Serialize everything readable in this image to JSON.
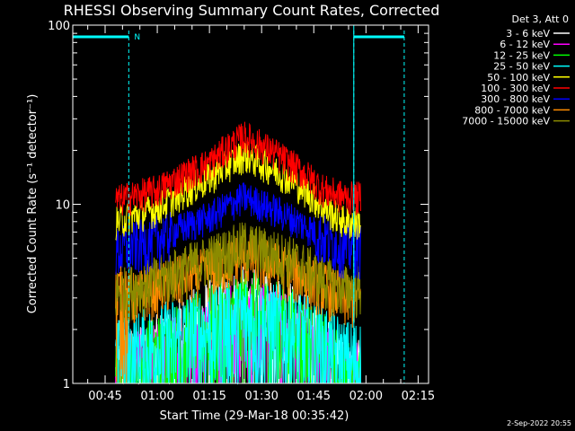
{
  "chart_data": {
    "type": "line",
    "title": "RHESSI Observing Summary Count Rates, Corrected",
    "xlabel": "Start Time (29-Mar-18 00:35:42)",
    "ylabel": "Corrected Count Rate (s⁻¹ detector⁻¹)",
    "yscale": "log",
    "ylim": [
      1,
      100
    ],
    "y_ticks": [
      {
        "value": 1,
        "label": "1"
      },
      {
        "value": 10,
        "label": "10"
      },
      {
        "value": 100,
        "label": "100"
      }
    ],
    "xlim": [
      "00:35:42",
      "02:18:00"
    ],
    "x_ticks": [
      "00:45",
      "01:00",
      "01:15",
      "01:30",
      "01:45",
      "02:00",
      "02:15"
    ],
    "x_tick_minutes": [
      45,
      60,
      75,
      90,
      105,
      120,
      135
    ],
    "legend": {
      "header": "Det 3, Att 0",
      "placement": "top-right outside"
    },
    "series": [
      {
        "name": "3 - 6 keV",
        "color": "#ffffff",
        "values": [
          1.0,
          1.4,
          2.2,
          2.6,
          2.2,
          1.4,
          1.0
        ]
      },
      {
        "name": "6 - 12 keV",
        "color": "#ff00ff",
        "values": [
          1.0,
          1.3,
          1.8,
          2.2,
          1.8,
          1.3,
          1.0
        ]
      },
      {
        "name": "12 - 25 keV",
        "color": "#00ff00",
        "values": [
          1.0,
          1.4,
          2.0,
          2.5,
          2.0,
          1.4,
          1.0
        ]
      },
      {
        "name": "25 - 50 keV",
        "color": "#00ffff",
        "values": [
          1.3,
          1.6,
          2.0,
          2.3,
          2.0,
          1.6,
          1.3
        ]
      },
      {
        "name": "50 - 100 keV",
        "color": "#ffff00",
        "values": [
          8.0,
          9.5,
          14.0,
          19.0,
          14.0,
          9.5,
          8.0
        ]
      },
      {
        "name": "100 - 300 keV",
        "color": "#ff0000",
        "values": [
          10.5,
          12.0,
          17.0,
          24.0,
          17.0,
          12.0,
          11.0
        ]
      },
      {
        "name": "300 - 800 keV",
        "color": "#0000ff",
        "values": [
          5.5,
          6.5,
          8.5,
          11.0,
          8.5,
          6.5,
          5.8
        ]
      },
      {
        "name": "800 - 7000 keV",
        "color": "#ff8c00",
        "values": [
          2.8,
          3.5,
          4.3,
          5.2,
          4.3,
          3.5,
          3.0
        ]
      },
      {
        "name": "7000 - 15000 keV",
        "color": "#8b8b00",
        "values": [
          3.2,
          3.8,
          5.0,
          6.0,
          5.0,
          3.8,
          3.4
        ]
      }
    ],
    "series_x_minutes": [
      48.0,
      60.0,
      75.0,
      85.0,
      98.0,
      108.0,
      114.0
    ],
    "data_start_minutes": 48.0,
    "data_end_minutes": 118.5,
    "annotations": [
      {
        "text": "N",
        "color": "#00ffff",
        "note": "night interval marker"
      }
    ],
    "night_intervals_minutes": [
      [
        35.7,
        51.8
      ],
      [
        116.5,
        131.0
      ]
    ],
    "marker_color": "#00ffff"
  },
  "footer": {
    "timestamp": "2-Sep-2022 20:55"
  }
}
